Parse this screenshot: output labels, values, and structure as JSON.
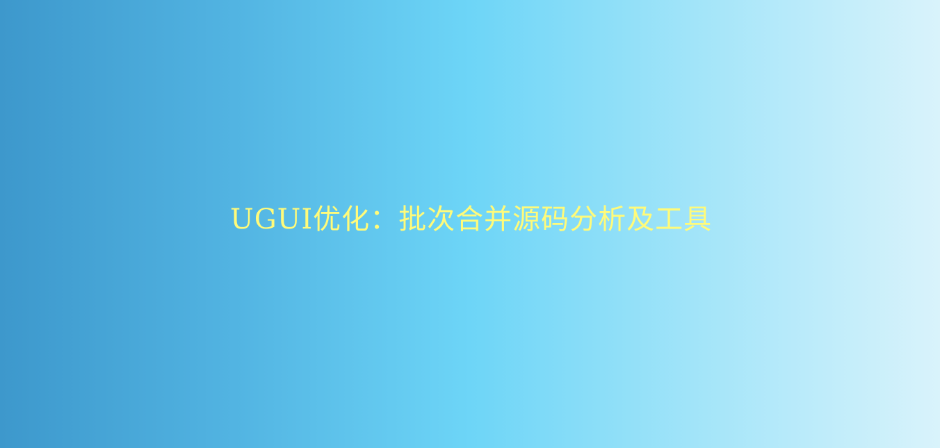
{
  "banner": {
    "title": "UGUI优化：批次合并源码分析及工具",
    "title_color": "#fffb7a",
    "gradient_colors": [
      "#3d98cc",
      "#52b4e2",
      "#6dd5f7",
      "#a4e5f9",
      "#d9f3fb"
    ]
  }
}
